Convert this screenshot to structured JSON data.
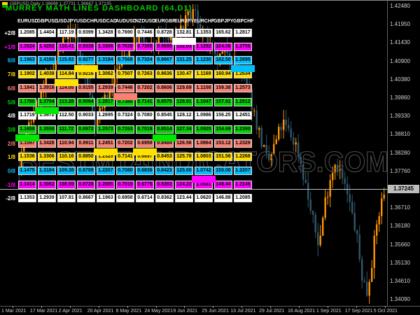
{
  "window": {
    "symbol_info": "GBPUSD,Daily 1.36698 1.37731 1.36667 1.37135",
    "title": "MURREY MATH LINES DASHBOARD (64,D1)"
  },
  "watermark": "BESTMT4INDICATORS.COM",
  "dashboard": {
    "columns": [
      "EURUSD",
      "GBPUSD",
      "USDJPY",
      "USDCHF",
      "USDCAD",
      "AUDUSD",
      "NZDUSD",
      "EURGBP",
      "EURJPY",
      "EURCHF",
      "GBPJPY",
      "GBPCHF"
    ],
    "rows": [
      {
        "label": "+2/8",
        "color": "#FFFFFF",
        "values": [
          "1.2085",
          "1.4404",
          "117.19",
          "0.9399",
          "1.3428",
          "0.7690",
          "0.7446",
          "0.8728",
          "132.81",
          "1.1353",
          "165.62",
          "1.2817"
        ]
      },
      {
        "label": "+1/8",
        "color": "#FF00FF",
        "values": [
          "1.2024",
          "1.4282",
          "116.41",
          "0.9338",
          "1.3306",
          "0.7629",
          "0.7385",
          "0.8698",
          "132.03",
          "1.1292",
          "164.06",
          "1.2756"
        ]
      },
      {
        "label": "8/8",
        "color": "#00BFFF",
        "values": [
          "1.1963",
          "1.4160",
          "115.62",
          "0.9277",
          "1.3184",
          "0.7568",
          "0.7324",
          "0.8667",
          "131.25",
          "1.1230",
          "162.50",
          "1.2695"
        ]
      },
      {
        "label": "7/8",
        "color": "#FFDF00",
        "values": [
          "1.1902",
          "1.4038",
          "114.84",
          "0.9216",
          "1.3062",
          "0.7507",
          "0.7263",
          "0.8636",
          "130.47",
          "1.1169",
          "160.94",
          "1.2634"
        ]
      },
      {
        "label": "6/8",
        "color": "#FA8072",
        "values": [
          "1.1841",
          "1.3916",
          "114.05",
          "0.9155",
          "1.2939",
          "0.7446",
          "0.7202",
          "0.8606",
          "129.69",
          "1.1108",
          "159.38",
          "1.2573"
        ]
      },
      {
        "label": "5/8",
        "color": "#00D300",
        "values": [
          "1.1780",
          "1.3794",
          "113.28",
          "0.9094",
          "1.2817",
          "0.7385",
          "0.7141",
          "0.8575",
          "128.91",
          "1.1047",
          "157.81",
          "1.2512"
        ]
      },
      {
        "label": "4/8",
        "color": "#FFFFFF",
        "values": [
          "1.1719",
          "1.3672",
          "112.50",
          "0.9033",
          "1.2695",
          "0.7324",
          "0.7080",
          "0.8545",
          "128.12",
          "1.0986",
          "156.25",
          "1.2451"
        ]
      },
      {
        "label": "3/8",
        "color": "#00D300",
        "values": [
          "1.1658",
          "1.3550",
          "111.72",
          "0.8972",
          "1.2573",
          "0.7263",
          "0.7019",
          "0.8514",
          "127.34",
          "1.0925",
          "154.69",
          "1.2390"
        ]
      },
      {
        "label": "2/8",
        "color": "#FA8072",
        "values": [
          "1.1597",
          "1.3428",
          "110.94",
          "0.8911",
          "1.2451",
          "0.7202",
          "0.6958",
          "0.8484",
          "126.56",
          "1.0864",
          "153.12",
          "1.2329"
        ]
      },
      {
        "label": "1/8",
        "color": "#FFDF00",
        "values": [
          "1.1536",
          "1.3306",
          "110.16",
          "0.8850",
          "1.2329",
          "0.7141",
          "0.6897",
          "0.8453",
          "125.78",
          "1.0803",
          "151.56",
          "1.2268"
        ]
      },
      {
        "label": "0/8",
        "color": "#00BFFF",
        "values": [
          "1.1475",
          "1.3184",
          "109.38",
          "0.8789",
          "1.2207",
          "0.7080",
          "0.6836",
          "0.8423",
          "125.00",
          "1.0742",
          "150.00",
          "1.2207"
        ]
      },
      {
        "label": "-1/8",
        "color": "#FF00FF",
        "values": [
          "1.1414",
          "1.3062",
          "108.59",
          "0.8728",
          "1.2085",
          "0.7019",
          "0.6775",
          "0.8392",
          "124.22",
          "1.0681",
          "148.44",
          "1.2146"
        ]
      },
      {
        "label": "-2/8",
        "color": "#FFFFFF",
        "values": [
          "1.1353",
          "1.2939",
          "107.81",
          "0.8667",
          "1.1963",
          "0.6958",
          "0.6714",
          "0.8362",
          "123.44",
          "1.0620",
          "146.88",
          "1.2085"
        ]
      }
    ],
    "highlights": [
      {
        "gap_after_row": 0,
        "col": "EURJPY",
        "color": "#FFFFFF"
      },
      {
        "gap_after_row": 2,
        "col": "USDCHF",
        "color": "#FFE100"
      },
      {
        "gap_after_row": 2,
        "col": "GBPCHF",
        "color": "#00BFFF"
      },
      {
        "gap_after_row": 3,
        "col": "USDJPY",
        "color": "#FFE100"
      },
      {
        "gap_after_row": 4,
        "col": "AUDUSD",
        "color": "#FA8072"
      },
      {
        "gap_after_row": 5,
        "col": "GBPUSD",
        "color": "#00E800"
      },
      {
        "gap_after_row": 7,
        "col": "EURUSD",
        "color": "#00E800"
      },
      {
        "gap_after_row": 7,
        "col": "EURGBP",
        "color": "#00E800"
      },
      {
        "gap_after_row": 8,
        "col": "USDCAD",
        "color": "#FFE100"
      },
      {
        "gap_after_row": 8,
        "col": "NZDUSD",
        "color": "#FFE100"
      },
      {
        "gap_after_row": 10,
        "col": "EURCHF",
        "color": "#FF00FF"
      }
    ]
  },
  "price_axis": {
    "labels": [
      "1.42480",
      "1.41950",
      "1.41430",
      "1.40900",
      "1.40380",
      "1.39860",
      "1.39330",
      "1.38810",
      "1.38280",
      "1.37760",
      "1.37230",
      "1.36710",
      "1.36180",
      "1.35660",
      "1.35130",
      "1.34610",
      "1.34090"
    ],
    "current": "1.37245"
  },
  "time_axis": {
    "labels": [
      "1 Mar 2021",
      "17 Mar 2021",
      "2 Apr 2021",
      "20 Apr 2021",
      "6 May 2021",
      "24 May 2021",
      "9 Jun 2021",
      "25 Jun 2021",
      "13 Jul 2021",
      "29 Jul 2021",
      "16 Aug 2021",
      "1 Sep 2021",
      "17 Sep 2021",
      "5 Oct 2021"
    ]
  },
  "chart": {
    "seed": 7,
    "bars": 150,
    "up_color": "#FF9500",
    "down_color": "#33576B",
    "top_price": 1.4248,
    "bottom_price": 1.3409,
    "anchors": [
      [
        0,
        1.378
      ],
      [
        0.03,
        1.39
      ],
      [
        0.06,
        1.3985
      ],
      [
        0.09,
        1.406
      ],
      [
        0.12,
        1.413
      ],
      [
        0.15,
        1.417
      ],
      [
        0.18,
        1.406
      ],
      [
        0.21,
        1.392
      ],
      [
        0.24,
        1.3985
      ],
      [
        0.27,
        1.406
      ],
      [
        0.3,
        1.412
      ],
      [
        0.33,
        1.4155
      ],
      [
        0.36,
        1.412
      ],
      [
        0.39,
        1.417
      ],
      [
        0.42,
        1.4135
      ],
      [
        0.45,
        1.419
      ],
      [
        0.48,
        1.423
      ],
      [
        0.51,
        1.415
      ],
      [
        0.54,
        1.408
      ],
      [
        0.57,
        1.412
      ],
      [
        0.6,
        1.406
      ],
      [
        0.63,
        1.399
      ],
      [
        0.66,
        1.387
      ],
      [
        0.68,
        1.379
      ],
      [
        0.7,
        1.385
      ],
      [
        0.72,
        1.391
      ],
      [
        0.74,
        1.388
      ],
      [
        0.76,
        1.384
      ],
      [
        0.78,
        1.375
      ],
      [
        0.8,
        1.364
      ],
      [
        0.82,
        1.356
      ],
      [
        0.835,
        1.368
      ],
      [
        0.85,
        1.3755
      ],
      [
        0.865,
        1.3805
      ],
      [
        0.88,
        1.376
      ],
      [
        0.9,
        1.369
      ],
      [
        0.92,
        1.36
      ],
      [
        0.935,
        1.348
      ],
      [
        0.95,
        1.3425
      ],
      [
        0.965,
        1.353
      ],
      [
        0.98,
        1.364
      ],
      [
        1,
        1.3725
      ]
    ]
  }
}
